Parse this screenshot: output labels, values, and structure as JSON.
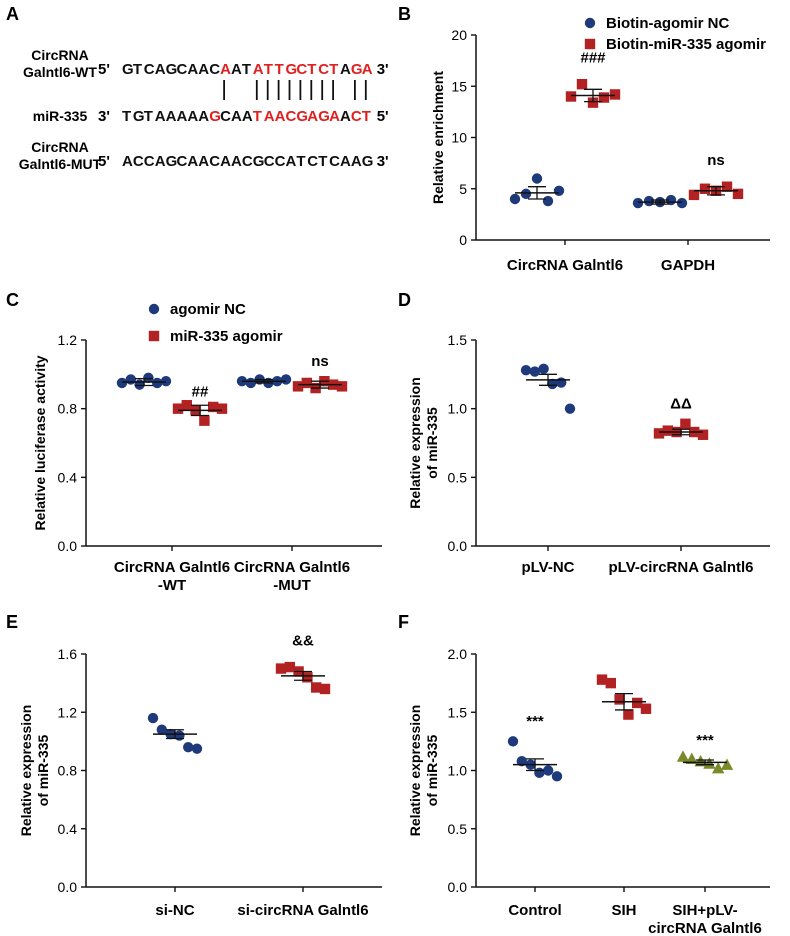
{
  "panel_a": {
    "label": "A",
    "rows": [
      {
        "name": [
          "CircRNA",
          "Galntl6-WT"
        ],
        "prefix": "5' ",
        "seq": "GTCAGCAACAATATTGCTCTAGA",
        "red": [
          9,
          12,
          13,
          14,
          15,
          16,
          17,
          18,
          19,
          21,
          22
        ],
        "suffix": " 3'"
      },
      {
        "name": [
          "miR-335"
        ],
        "prefix": "3' ",
        "seq": "TGTAAAAAGCAATAACGAGAACT",
        "red": [
          8,
          12,
          13,
          14,
          15,
          16,
          17,
          18,
          19,
          21,
          22
        ],
        "suffix": " 5'"
      },
      {
        "name": [
          "CircRNA",
          "Galntl6-MUT"
        ],
        "prefix": "5' ",
        "seq": "ACCAGCAACAACGCCATCTCAAG",
        "red": [],
        "suffix": " 3'"
      }
    ],
    "pairs": [
      9,
      12,
      13,
      14,
      15,
      16,
      17,
      18,
      19,
      21,
      22
    ]
  },
  "chart_data": [
    {
      "panel": "B",
      "type": "scatter",
      "ylabel": "Relative enrichment",
      "ylim": [
        0,
        20
      ],
      "yticks": [
        "0",
        "5",
        "10",
        "15",
        "20"
      ],
      "categories": [
        "CircRNA Galntl6",
        "GAPDH"
      ],
      "legend": [
        "Biotin-agomir NC",
        "Biotin-miR-335 agomir"
      ],
      "series": [
        {
          "name": "Biotin-agomir NC",
          "color": "#1f3a7a",
          "marker": "circle",
          "points": [
            [
              [
                4.0,
                4.5,
                6.0,
                3.8,
                4.8
              ],
              4.6,
              0.6
            ],
            [
              [
                3.6,
                3.8,
                3.7,
                3.9,
                3.6
              ],
              3.7,
              0.2
            ]
          ]
        },
        {
          "name": "Biotin-miR-335 agomir",
          "color": "#b22222",
          "marker": "square",
          "points": [
            [
              [
                14.0,
                15.2,
                13.4,
                13.9,
                14.2
              ],
              14.1,
              0.6
            ],
            [
              [
                4.4,
                5.0,
                4.8,
                5.2,
                4.5
              ],
              4.8,
              0.4
            ]
          ]
        }
      ],
      "annotations": [
        {
          "cat": 0,
          "series": 1,
          "text": "###",
          "y": 17.3
        },
        {
          "cat": 1,
          "series": 1,
          "text": "ns",
          "y": 7.3
        }
      ]
    },
    {
      "panel": "C",
      "type": "scatter",
      "ylabel": "Relative luciferase activity",
      "ylim": [
        0,
        1.2
      ],
      "yticks": [
        "0.0",
        "0.4",
        "0.8",
        "1.2"
      ],
      "categories": [
        [
          "CircRNA Galntl6",
          "-WT"
        ],
        [
          "CircRNA Galntl6",
          "-MUT"
        ]
      ],
      "legend": [
        "agomir NC",
        "miR-335 agomir"
      ],
      "series": [
        {
          "name": "agomir NC",
          "color": "#1f3a7a",
          "marker": "circle",
          "points": [
            [
              [
                0.95,
                0.97,
                0.94,
                0.98,
                0.95,
                0.96
              ],
              0.955,
              0.02
            ],
            [
              [
                0.96,
                0.95,
                0.97,
                0.95,
                0.96,
                0.97
              ],
              0.96,
              0.01
            ]
          ]
        },
        {
          "name": "miR-335 agomir",
          "color": "#b22222",
          "marker": "square",
          "points": [
            [
              [
                0.8,
                0.82,
                0.79,
                0.73,
                0.81,
                0.8
              ],
              0.79,
              0.03
            ],
            [
              [
                0.93,
                0.95,
                0.92,
                0.96,
                0.94,
                0.93
              ],
              0.94,
              0.02
            ]
          ]
        }
      ],
      "annotations": [
        {
          "cat": 0,
          "series": 1,
          "text": "##",
          "y": 0.87
        },
        {
          "cat": 1,
          "series": 1,
          "text": "ns",
          "y": 1.05
        }
      ]
    },
    {
      "panel": "D",
      "type": "scatter",
      "ylabel": [
        "Relative expression",
        "of miR-335"
      ],
      "ylim": [
        0,
        1.5
      ],
      "yticks": [
        "0.0",
        "0.5",
        "1.0",
        "1.5"
      ],
      "categories": [
        "pLV-NC",
        "pLV-circRNA Galntl6"
      ],
      "series": [
        {
          "color": "#1f3a7a",
          "marker": "circle",
          "cat": 0,
          "values": [
            1.28,
            1.27,
            1.29,
            1.18,
            1.19,
            1.0
          ],
          "mean": 1.21,
          "sem": 0.04
        },
        {
          "color": "#b22222",
          "marker": "square",
          "cat": 1,
          "values": [
            0.82,
            0.84,
            0.83,
            0.89,
            0.83,
            0.81
          ],
          "mean": 0.83,
          "sem": 0.02
        }
      ],
      "annotations": [
        {
          "cat": 1,
          "text": "ΔΔ",
          "y": 1.0
        }
      ]
    },
    {
      "panel": "E",
      "type": "scatter",
      "ylabel": [
        "Relative expression",
        "of miR-335"
      ],
      "ylim": [
        0,
        1.6
      ],
      "yticks": [
        "0.0",
        "0.4",
        "0.8",
        "1.2",
        "1.6"
      ],
      "categories": [
        "si-NC",
        "si-circRNA Galntl6"
      ],
      "series": [
        {
          "color": "#1f3a7a",
          "marker": "circle",
          "cat": 0,
          "values": [
            1.16,
            1.08,
            1.05,
            1.04,
            0.96,
            0.95
          ],
          "mean": 1.05,
          "sem": 0.03
        },
        {
          "color": "#b22222",
          "marker": "square",
          "cat": 1,
          "values": [
            1.5,
            1.51,
            1.48,
            1.44,
            1.37,
            1.36
          ],
          "mean": 1.45,
          "sem": 0.03
        }
      ],
      "annotations": [
        {
          "cat": 1,
          "text": "&&",
          "y": 1.66
        }
      ]
    },
    {
      "panel": "F",
      "type": "scatter",
      "ylabel": [
        "Relative expression",
        "of miR-335"
      ],
      "ylim": [
        0,
        2.0
      ],
      "yticks": [
        "0.0",
        "0.5",
        "1.0",
        "1.5",
        "2.0"
      ],
      "categories": [
        "Control",
        "SIH",
        [
          "SIH+pLV-",
          "circRNA Galntl6"
        ]
      ],
      "series": [
        {
          "color": "#1f3a7a",
          "marker": "circle",
          "cat": 0,
          "values": [
            1.25,
            1.08,
            1.05,
            0.98,
            1.0,
            0.95
          ],
          "mean": 1.05,
          "sem": 0.05
        },
        {
          "color": "#b22222",
          "marker": "square",
          "cat": 1,
          "values": [
            1.78,
            1.75,
            1.61,
            1.48,
            1.58,
            1.53
          ],
          "mean": 1.59,
          "sem": 0.07
        },
        {
          "color": "#7a8a2a",
          "marker": "triangle",
          "cat": 2,
          "values": [
            1.12,
            1.1,
            1.08,
            1.06,
            1.02,
            1.05
          ],
          "mean": 1.07,
          "sem": 0.02
        }
      ],
      "annotations": [
        {
          "cat": 0,
          "text": "***",
          "y": 1.38
        },
        {
          "cat": 2,
          "text": "***",
          "y": 1.22
        }
      ]
    }
  ]
}
